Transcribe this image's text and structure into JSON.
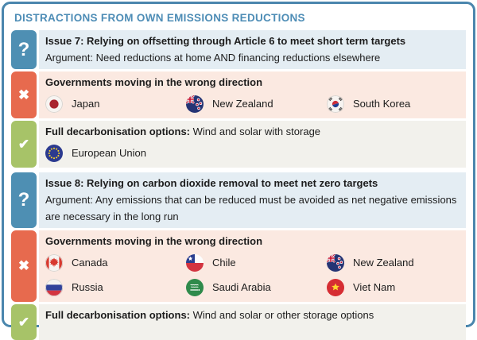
{
  "colors": {
    "card_border": "#4a86ad",
    "title_text": "#4e8db6",
    "question_icon": "#4e8fb3",
    "cross_icon": "#e76a4e",
    "check_icon": "#a7c368",
    "question_bg": "#e4edf3",
    "cross_bg": "#fbe9e1",
    "check_bg": "#f2f1ec",
    "text": "#1c1c1c"
  },
  "icons": {
    "question": "?",
    "cross": "✖",
    "check": "✔"
  },
  "header": {
    "title": "DISTRACTIONS FROM OWN EMISSIONS REDUCTIONS"
  },
  "issues": [
    {
      "id": "issue-7",
      "title": "Issue 7: Relying on offsetting through Article 6 to meet short term targets",
      "argument": "Argument: Need reductions at home AND financing reductions elsewhere",
      "wrong_direction": {
        "heading": "Governments moving in the wrong direction",
        "countries": [
          {
            "id": "japan",
            "label": "Japan"
          },
          {
            "id": "new-zealand",
            "label": "New Zealand"
          },
          {
            "id": "south-korea",
            "label": "South Korea"
          }
        ]
      },
      "decarbonisation": {
        "heading_bold": "Full decarbonisation options:",
        "heading_rest": " Wind and solar with storage",
        "countries": [
          {
            "id": "european-union",
            "label": "European Union"
          }
        ]
      }
    },
    {
      "id": "issue-8",
      "title": "Issue 8: Relying on carbon dioxide removal to meet net zero targets",
      "argument": "Argument: Any emissions that can be reduced must be avoided as net negative emissions are necessary in the long run",
      "wrong_direction": {
        "heading": "Governments moving in the wrong direction",
        "countries": [
          {
            "id": "canada",
            "label": "Canada"
          },
          {
            "id": "chile",
            "label": "Chile"
          },
          {
            "id": "new-zealand",
            "label": "New Zealand"
          },
          {
            "id": "russia",
            "label": "Russia"
          },
          {
            "id": "saudi-arabia",
            "label": "Saudi Arabia"
          },
          {
            "id": "viet-nam",
            "label": "Viet Nam"
          }
        ]
      },
      "decarbonisation": {
        "heading_bold": "Full decarbonisation options:",
        "heading_rest": " Wind and solar or other storage options",
        "countries": []
      }
    }
  ]
}
